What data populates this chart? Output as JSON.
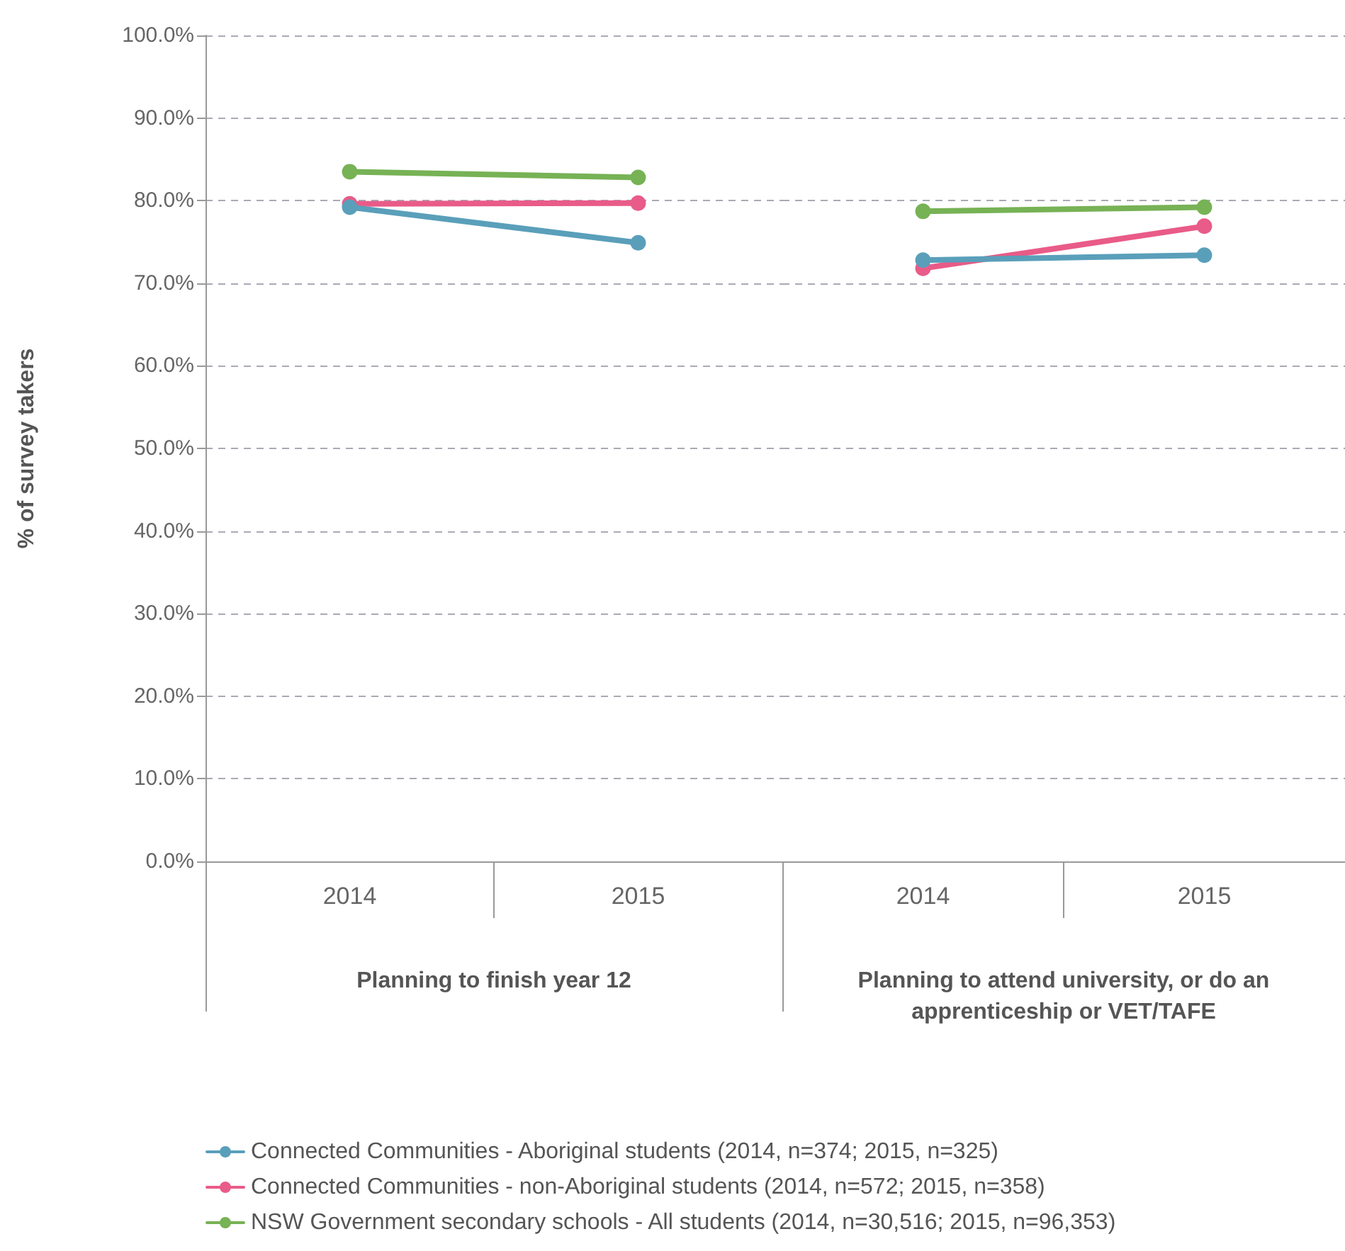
{
  "chart_data": [
    {
      "type": "line",
      "xlabel": "Planning to finish year 12",
      "ylabel": "% of survey takers",
      "categories": [
        "2014",
        "2015"
      ],
      "ylim": [
        0,
        100
      ],
      "yticks": [
        {
          "value": 0,
          "label": "0.0%"
        },
        {
          "value": 10,
          "label": "10.0%"
        },
        {
          "value": 20,
          "label": "20.0%"
        },
        {
          "value": 30,
          "label": "30.0%"
        },
        {
          "value": 40,
          "label": "40.0%"
        },
        {
          "value": 50,
          "label": "50.0%"
        },
        {
          "value": 60,
          "label": "60.0%"
        },
        {
          "value": 70,
          "label": "70.0%"
        },
        {
          "value": 80,
          "label": "80.0%"
        },
        {
          "value": 90,
          "label": "90.0%"
        },
        {
          "value": 100,
          "label": "100.0%"
        }
      ],
      "grid": "y",
      "legend": "bottom",
      "marker": "circle",
      "line_style": "solid",
      "series": [
        {
          "name": "Connected Communities - Aboriginal students (2014, n=374; 2015, n=325)",
          "color": "#5a9fba",
          "values": [
            79.2,
            74.9
          ]
        },
        {
          "name": "Connected Communities - non-Aboriginal students (2014, n=572; 2015, n=358)",
          "color": "#e95b88",
          "values": [
            79.6,
            79.7
          ]
        },
        {
          "name": "NSW Government secondary schools - All students (2014, n=30,516; 2015, n=96,353)",
          "color": "#77b255",
          "values": [
            83.5,
            82.8
          ]
        }
      ]
    },
    {
      "type": "line",
      "xlabel": "Planning to attend university, or do an apprenticeship or VET/TAFE",
      "categories": [
        "2014",
        "2015"
      ],
      "ylim": [
        0,
        100
      ],
      "yticks": [
        0,
        10,
        20,
        30,
        40,
        50,
        60,
        70,
        80,
        90,
        100
      ],
      "grid": "y",
      "tick_labels": "x",
      "marker": "circle",
      "line_style": "solid",
      "series": [
        {
          "color": "#5a9fba",
          "values": [
            72.8,
            73.4
          ]
        },
        {
          "color": "#e95b88",
          "values": [
            71.8,
            76.9
          ]
        },
        {
          "color": "#77b255",
          "values": [
            78.7,
            79.2
          ]
        }
      ]
    }
  ]
}
